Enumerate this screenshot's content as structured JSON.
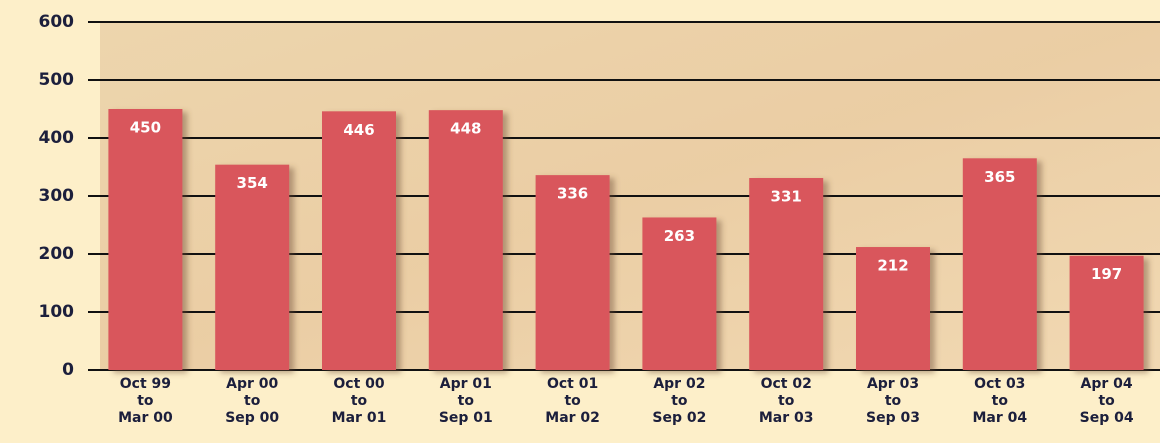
{
  "chart_data": {
    "type": "bar",
    "categories": [
      "Oct 99\nto\nMar 00",
      "Apr 00\nto\nSep 00",
      "Oct 00\nto\nMar 01",
      "Apr 01\nto\nSep 01",
      "Oct 01\nto\nMar 02",
      "Apr 02\nto\nSep 02",
      "Oct 02\nto\nMar 03",
      "Apr 03\nto\nSep 03",
      "Oct 03\nto\nMar 04",
      "Apr 04\nto\nSep 04"
    ],
    "values": [
      450,
      354,
      446,
      448,
      336,
      263,
      331,
      212,
      365,
      197
    ],
    "color": "#d9565c",
    "ylim": [
      0,
      600
    ],
    "yticks": [
      0,
      100,
      200,
      300,
      400,
      500,
      600
    ],
    "grid": true
  }
}
